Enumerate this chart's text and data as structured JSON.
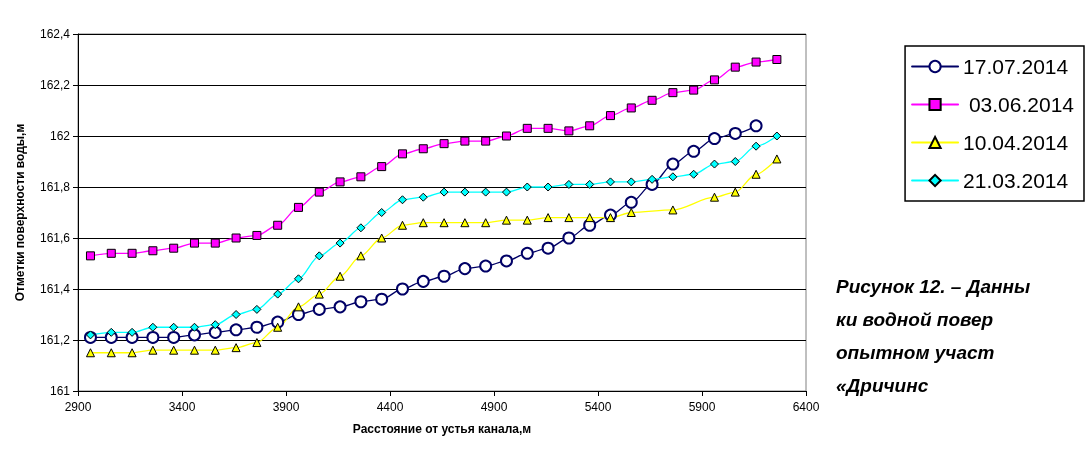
{
  "chart_data": {
    "type": "line",
    "xlabel": "Расстояние от устья канала,м",
    "ylabel": "Отметки поверхности воды,м",
    "annotations": [
      "Рисунок 12. – Данны\nки водной повер\nопытном участ\n«Дричинс"
    ],
    "xlim": [
      2900,
      6400
    ],
    "xticks": [
      2900,
      3400,
      3900,
      4400,
      4900,
      5400,
      5900,
      6400
    ],
    "ylim": [
      161,
      162.4
    ],
    "yticks": [
      {
        "value": 161,
        "label": "161"
      },
      {
        "value": 161.2,
        "label": "161,2"
      },
      {
        "value": 161.4,
        "label": "161,4"
      },
      {
        "value": 161.6,
        "label": "161,6"
      },
      {
        "value": 161.8,
        "label": "161,8"
      },
      {
        "value": 162,
        "label": "162"
      },
      {
        "value": 162.2,
        "label": "162,2"
      },
      {
        "value": 162.4,
        "label": "162,4"
      }
    ],
    "grid": "y",
    "legend": "right",
    "series": [
      {
        "name": "17.07.2014",
        "color": "#000066",
        "marker": "circle",
        "x": [
          2960,
          3060,
          3160,
          3260,
          3360,
          3460,
          3560,
          3660,
          3760,
          3860,
          3960,
          4060,
          4160,
          4260,
          4360,
          4460,
          4560,
          4660,
          4760,
          4860,
          4960,
          5060,
          5160,
          5260,
          5360,
          5460,
          5560,
          5660,
          5760,
          5860,
          5960,
          6060,
          6160
        ],
        "values": [
          161.21,
          161.21,
          161.21,
          161.21,
          161.21,
          161.22,
          161.23,
          161.24,
          161.25,
          161.27,
          161.3,
          161.32,
          161.33,
          161.35,
          161.36,
          161.4,
          161.43,
          161.45,
          161.48,
          161.49,
          161.51,
          161.54,
          161.56,
          161.6,
          161.65,
          161.69,
          161.74,
          161.81,
          161.89,
          161.94,
          161.99,
          162.01,
          162.04
        ]
      },
      {
        "name": " 03.06.2014",
        "color": "#ff00ff",
        "marker": "square",
        "x": [
          2960,
          3060,
          3160,
          3260,
          3360,
          3460,
          3560,
          3660,
          3760,
          3860,
          3960,
          4060,
          4160,
          4260,
          4360,
          4460,
          4560,
          4660,
          4760,
          4860,
          4960,
          5060,
          5160,
          5260,
          5360,
          5460,
          5560,
          5660,
          5760,
          5860,
          5960,
          6060,
          6160,
          6260
        ],
        "values": [
          161.53,
          161.54,
          161.54,
          161.55,
          161.56,
          161.58,
          161.58,
          161.6,
          161.61,
          161.65,
          161.72,
          161.78,
          161.82,
          161.84,
          161.88,
          161.93,
          161.95,
          161.97,
          161.98,
          161.98,
          162.0,
          162.03,
          162.03,
          162.02,
          162.04,
          162.08,
          162.11,
          162.14,
          162.17,
          162.18,
          162.22,
          162.27,
          162.29,
          162.3
        ]
      },
      {
        "name": "10.04.2014",
        "color": "#ffff00",
        "marker": "triangle",
        "x": [
          2960,
          3060,
          3160,
          3260,
          3360,
          3460,
          3560,
          3660,
          3760,
          3860,
          3960,
          4060,
          4160,
          4260,
          4360,
          4460,
          4560,
          4660,
          4760,
          4860,
          4960,
          5060,
          5160,
          5260,
          5360,
          5460,
          5560,
          5760,
          5960,
          6060,
          6160,
          6260
        ],
        "values": [
          161.15,
          161.15,
          161.15,
          161.16,
          161.16,
          161.16,
          161.16,
          161.17,
          161.19,
          161.25,
          161.33,
          161.38,
          161.45,
          161.53,
          161.6,
          161.65,
          161.66,
          161.66,
          161.66,
          161.66,
          161.67,
          161.67,
          161.68,
          161.68,
          161.68,
          161.68,
          161.7,
          161.71,
          161.76,
          161.78,
          161.85,
          161.91
        ]
      },
      {
        "name": "21.03.2014",
        "color": "#00ffff",
        "marker": "diamond",
        "x": [
          2960,
          3060,
          3160,
          3260,
          3360,
          3460,
          3560,
          3660,
          3760,
          3860,
          3960,
          4060,
          4160,
          4260,
          4360,
          4460,
          4560,
          4660,
          4760,
          4860,
          4960,
          5060,
          5160,
          5260,
          5360,
          5460,
          5560,
          5660,
          5760,
          5860,
          5960,
          6060,
          6160,
          6260
        ],
        "values": [
          161.22,
          161.23,
          161.23,
          161.25,
          161.25,
          161.25,
          161.26,
          161.3,
          161.32,
          161.38,
          161.44,
          161.53,
          161.58,
          161.64,
          161.7,
          161.75,
          161.76,
          161.78,
          161.78,
          161.78,
          161.78,
          161.8,
          161.8,
          161.81,
          161.81,
          161.82,
          161.82,
          161.83,
          161.84,
          161.85,
          161.89,
          161.9,
          161.96,
          162.0
        ]
      }
    ]
  }
}
